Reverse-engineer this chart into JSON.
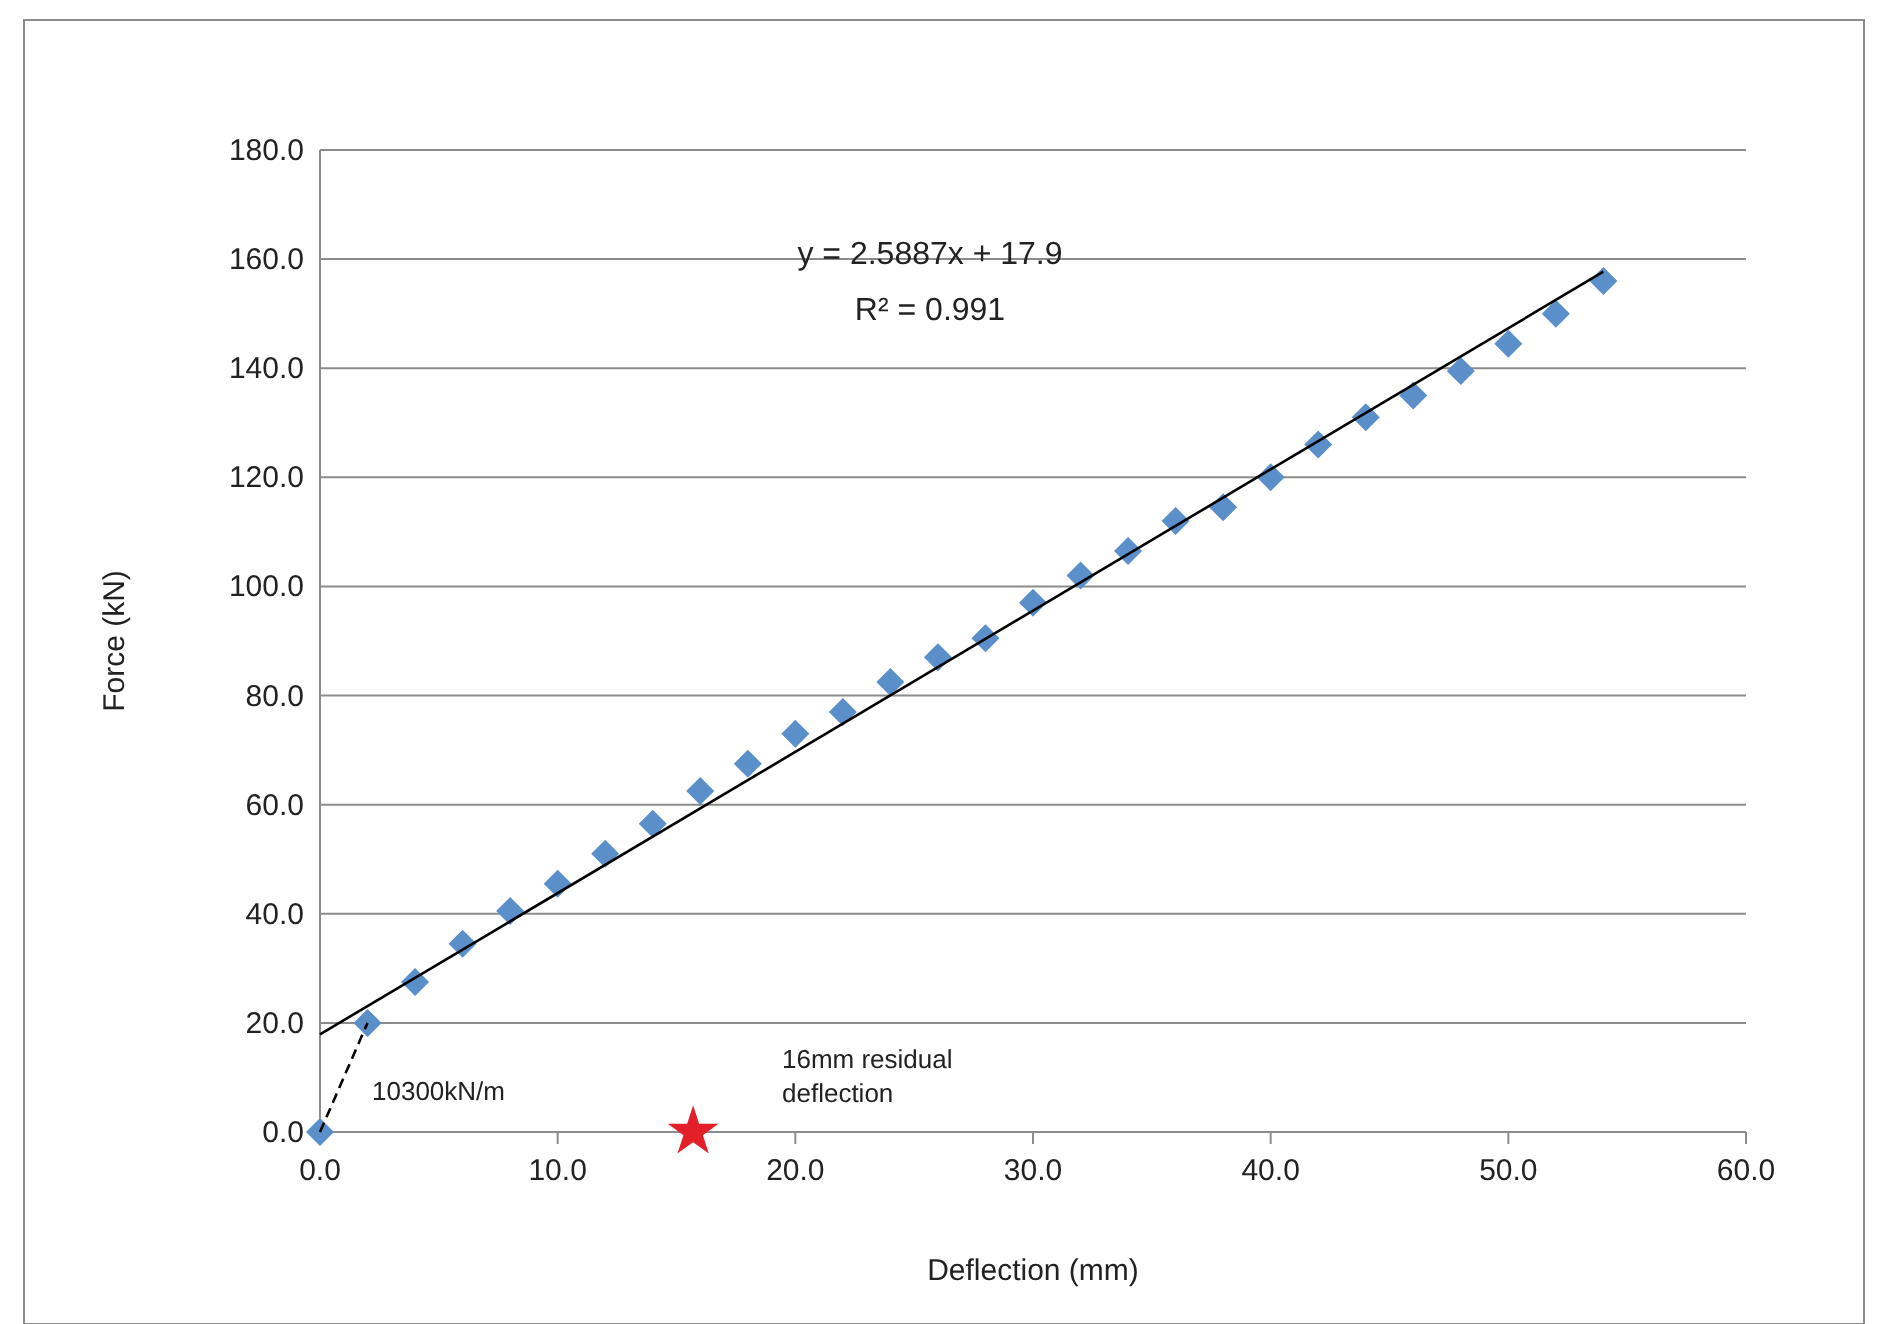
{
  "chart_data": {
    "type": "scatter",
    "xlabel": "Deflection (mm)",
    "ylabel": "Force (kN)",
    "xlim": [
      0,
      60
    ],
    "xticks": [
      {
        "value": 0,
        "label": "0.0"
      },
      {
        "value": 10,
        "label": "10.0"
      },
      {
        "value": 20,
        "label": "20.0"
      },
      {
        "value": 30,
        "label": "30.0"
      },
      {
        "value": 40,
        "label": "40.0"
      },
      {
        "value": 50,
        "label": "50.0"
      },
      {
        "value": 60,
        "label": "60.0"
      }
    ],
    "ylim": [
      0,
      180
    ],
    "yticks": [
      {
        "value": 0,
        "label": "0.0"
      },
      {
        "value": 20,
        "label": "20.0"
      },
      {
        "value": 40,
        "label": "40.0"
      },
      {
        "value": 60,
        "label": "60.0"
      },
      {
        "value": 80,
        "label": "80.0"
      },
      {
        "value": 100,
        "label": "100.0"
      },
      {
        "value": 120,
        "label": "120.0"
      },
      {
        "value": 140,
        "label": "140.0"
      },
      {
        "value": 160,
        "label": "160.0"
      },
      {
        "value": 180,
        "label": "180.0"
      }
    ],
    "grid": "y",
    "series": [
      {
        "marker": "diamond",
        "color": "#5b8fc9",
        "x": [
          0,
          2,
          4,
          6,
          8,
          10,
          12,
          14,
          16,
          18,
          20,
          22,
          24,
          26,
          28,
          30,
          32,
          34,
          36,
          38,
          40,
          42,
          44,
          46,
          48,
          50,
          52,
          54
        ],
        "values": [
          0,
          20,
          27.5,
          34.5,
          40.5,
          45.5,
          51,
          56.5,
          62.5,
          67.5,
          73,
          77,
          82.5,
          87,
          90.5,
          97,
          102,
          106.5,
          112,
          114.5,
          120,
          126,
          131,
          135,
          139.5,
          144.5,
          150,
          156
        ]
      },
      {
        "type": "line",
        "line_style": "solid",
        "color": "#000000",
        "x": [
          0,
          54
        ],
        "values": [
          17.9,
          157.7
        ]
      },
      {
        "type": "line",
        "line_style": "dashed",
        "color": "#000000",
        "x": [
          0,
          2
        ],
        "values": [
          0,
          20
        ]
      },
      {
        "type": "scatter",
        "marker": "star",
        "color": "#e3202a",
        "x": [
          15.7
        ],
        "values": [
          0
        ]
      }
    ],
    "annotations": [
      "y = 2.5887x + 17.9",
      "R² = 0.991",
      "10300kN/m",
      "16mm residual deflection"
    ]
  }
}
